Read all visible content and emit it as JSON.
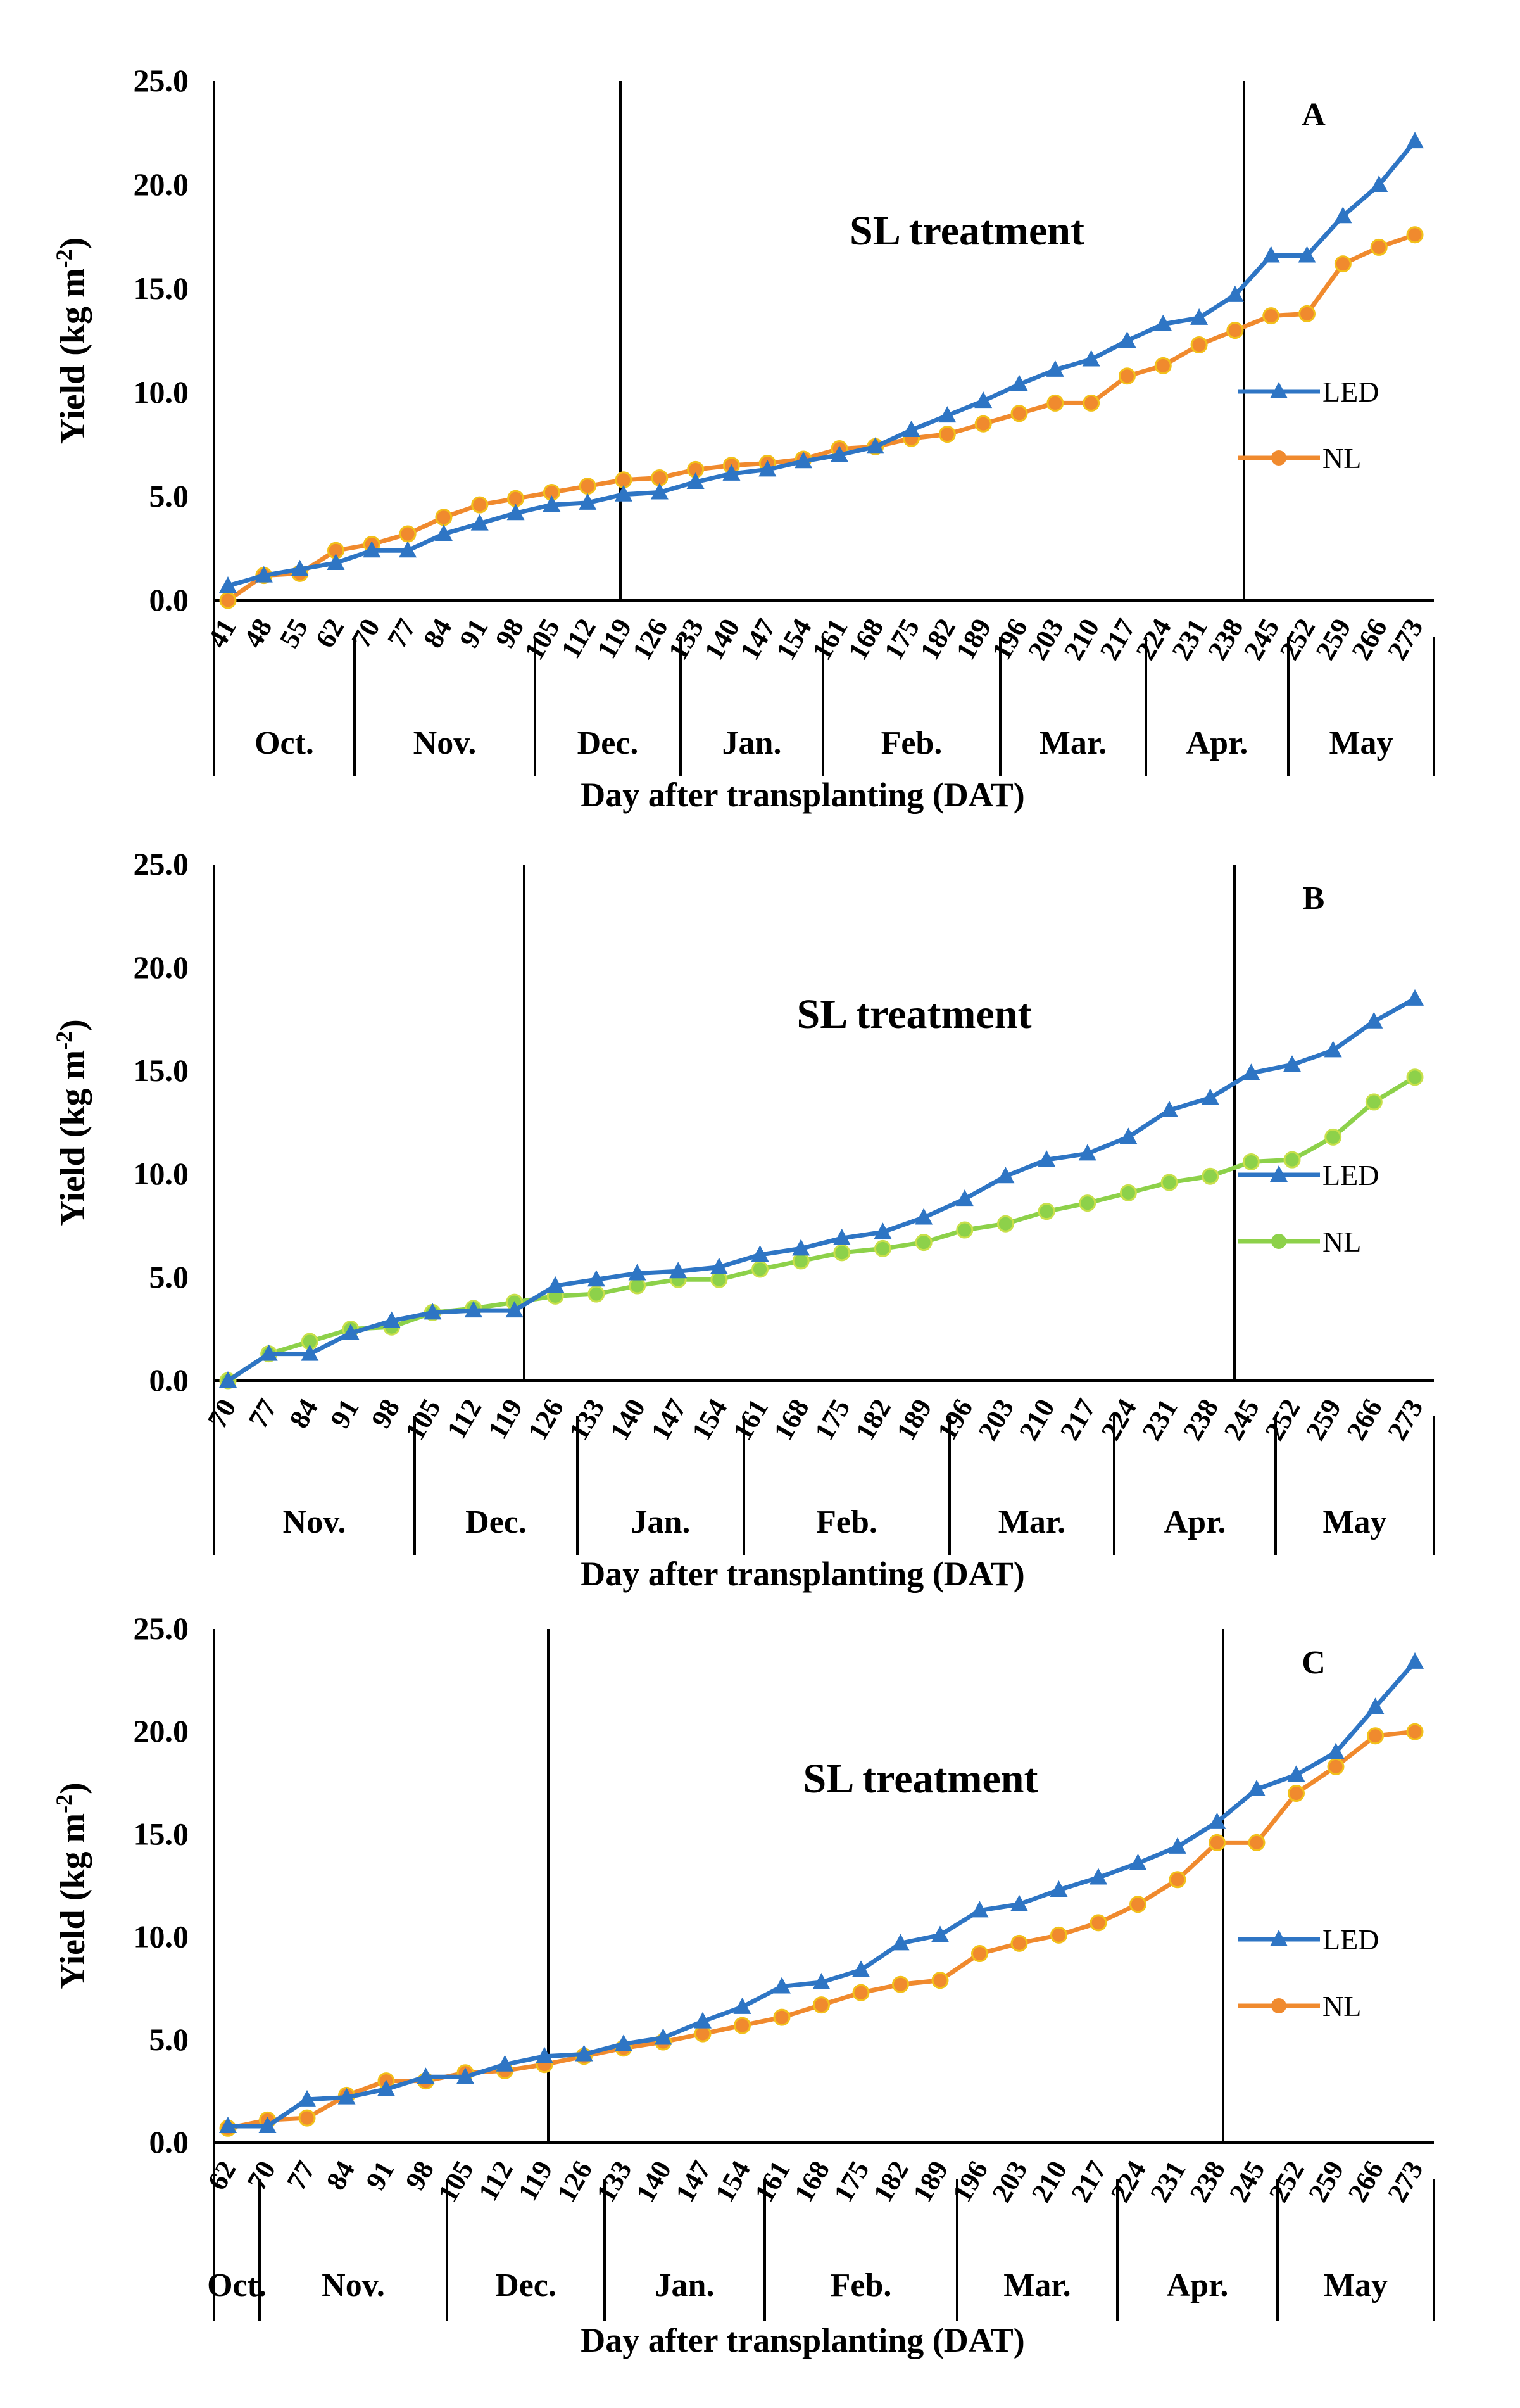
{
  "chart_data": [
    {
      "type": "line",
      "panel_label": "A",
      "title": "SL treatment",
      "xlabel": "Day after transplanting (DAT)",
      "ylabel": "Yield (kg m-2)",
      "ylim": [
        0,
        25
      ],
      "yticks": [
        "0.0",
        "5.0",
        "10.0",
        "15.0",
        "20.0",
        "25.0"
      ],
      "categories": [
        "41",
        "48",
        "55",
        "62",
        "70",
        "77",
        "84",
        "91",
        "98",
        "105",
        "112",
        "119",
        "126",
        "133",
        "140",
        "147",
        "154",
        "161",
        "168",
        "175",
        "182",
        "189",
        "196",
        "203",
        "210",
        "217",
        "224",
        "231",
        "238",
        "245",
        "252",
        "259",
        "266",
        "273"
      ],
      "months": [
        {
          "label": "Oct.",
          "from": 0,
          "to": 3
        },
        {
          "label": "Nov.",
          "from": 4,
          "to": 8
        },
        {
          "label": "Dec.",
          "from": 9,
          "to": 12
        },
        {
          "label": "Jan.",
          "from": 13,
          "to": 16
        },
        {
          "label": "Feb.",
          "from": 17,
          "to": 21
        },
        {
          "label": "Mar.",
          "from": 22,
          "to": 25
        },
        {
          "label": "Apr.",
          "from": 26,
          "to": 28
        },
        {
          "label": "May",
          "from": 29,
          "to": 33
        }
      ],
      "treatment_start": "119",
      "treatment_end": "238",
      "series": [
        {
          "name": "LED",
          "color": "#2e75c4",
          "marker": "triangle",
          "values": [
            0.7,
            1.2,
            1.5,
            1.8,
            2.4,
            2.4,
            3.2,
            3.7,
            4.2,
            4.6,
            4.7,
            5.1,
            5.2,
            5.7,
            6.1,
            6.3,
            6.7,
            7.0,
            7.4,
            8.2,
            8.9,
            9.6,
            10.4,
            11.1,
            11.6,
            12.5,
            13.3,
            13.6,
            14.7,
            16.6,
            16.6,
            18.5,
            20.0,
            22.1
          ]
        },
        {
          "name": "NL",
          "color": "#f08a2e",
          "marker": "circle",
          "values": [
            0.0,
            1.2,
            1.3,
            2.4,
            2.7,
            3.2,
            4.0,
            4.6,
            4.9,
            5.2,
            5.5,
            5.8,
            5.9,
            6.3,
            6.5,
            6.6,
            6.8,
            7.3,
            7.4,
            7.8,
            8.0,
            8.5,
            9.0,
            9.5,
            9.5,
            10.8,
            11.3,
            12.3,
            13.0,
            13.7,
            13.8,
            16.2,
            17.0,
            17.6
          ]
        }
      ]
    },
    {
      "type": "line",
      "panel_label": "B",
      "title": "SL treatment",
      "xlabel": "Day after transplanting (DAT)",
      "ylabel": "Yield (kg m-2)",
      "ylim": [
        0,
        25
      ],
      "yticks": [
        "0.0",
        "5.0",
        "10.0",
        "15.0",
        "20.0",
        "25.0"
      ],
      "categories": [
        "70",
        "77",
        "84",
        "91",
        "98",
        "105",
        "112",
        "119",
        "126",
        "133",
        "140",
        "147",
        "154",
        "161",
        "168",
        "175",
        "182",
        "189",
        "196",
        "203",
        "210",
        "217",
        "224",
        "231",
        "238",
        "245",
        "252",
        "259",
        "266",
        "273"
      ],
      "months": [
        {
          "label": "Nov.",
          "from": 0,
          "to": 4
        },
        {
          "label": "Dec.",
          "from": 5,
          "to": 8
        },
        {
          "label": "Jan.",
          "from": 9,
          "to": 12
        },
        {
          "label": "Feb.",
          "from": 13,
          "to": 17
        },
        {
          "label": "Mar.",
          "from": 18,
          "to": 21
        },
        {
          "label": "Apr.",
          "from": 22,
          "to": 24
        },
        {
          "label": "May",
          "from": 25,
          "to": 29
        }
      ],
      "treatment_start": "119",
      "treatment_end": "238",
      "series": [
        {
          "name": "LED",
          "color": "#2e75c4",
          "marker": "triangle",
          "values": [
            0.0,
            1.3,
            1.3,
            2.3,
            2.9,
            3.3,
            3.4,
            3.4,
            4.6,
            4.9,
            5.2,
            5.3,
            5.5,
            6.1,
            6.4,
            6.9,
            7.2,
            7.9,
            8.8,
            9.9,
            10.7,
            11.0,
            11.8,
            13.1,
            13.7,
            14.9,
            15.3,
            16.0,
            17.4,
            18.5
          ]
        },
        {
          "name": "NL",
          "color": "#8dd14a",
          "marker": "circle",
          "values": [
            0.0,
            1.3,
            1.9,
            2.5,
            2.6,
            3.3,
            3.5,
            3.8,
            4.1,
            4.2,
            4.6,
            4.9,
            4.9,
            5.4,
            5.8,
            6.2,
            6.4,
            6.7,
            7.3,
            7.6,
            8.2,
            8.6,
            9.1,
            9.6,
            9.9,
            10.6,
            10.7,
            11.8,
            13.5,
            14.7
          ]
        }
      ]
    },
    {
      "type": "line",
      "panel_label": "C",
      "title": "SL treatment",
      "xlabel": "Day after transplanting (DAT)",
      "ylabel": "Yield (kg m-2)",
      "ylim": [
        0,
        25
      ],
      "yticks": [
        "0.0",
        "5.0",
        "10.0",
        "15.0",
        "20.0",
        "25.0"
      ],
      "categories": [
        "62",
        "70",
        "77",
        "84",
        "91",
        "98",
        "105",
        "112",
        "119",
        "126",
        "133",
        "140",
        "147",
        "154",
        "161",
        "168",
        "175",
        "182",
        "189",
        "196",
        "203",
        "210",
        "217",
        "224",
        "231",
        "238",
        "245",
        "252",
        "259",
        "266",
        "273"
      ],
      "months": [
        {
          "label": "Oct.",
          "from": 0,
          "to": 0
        },
        {
          "label": "Nov.",
          "from": 1,
          "to": 5
        },
        {
          "label": "Dec.",
          "from": 6,
          "to": 9
        },
        {
          "label": "Jan.",
          "from": 10,
          "to": 13
        },
        {
          "label": "Feb.",
          "from": 14,
          "to": 18
        },
        {
          "label": "Mar.",
          "from": 19,
          "to": 22
        },
        {
          "label": "Apr.",
          "from": 23,
          "to": 25
        },
        {
          "label": "May",
          "from": 26,
          "to": 30
        }
      ],
      "treatment_start": "119",
      "treatment_end": "238",
      "series": [
        {
          "name": "LED",
          "color": "#2e75c4",
          "marker": "triangle",
          "values": [
            0.8,
            0.8,
            2.1,
            2.2,
            2.6,
            3.2,
            3.2,
            3.8,
            4.2,
            4.3,
            4.8,
            5.1,
            5.9,
            6.6,
            7.6,
            7.8,
            8.4,
            9.7,
            10.1,
            11.3,
            11.6,
            12.3,
            12.9,
            13.6,
            14.4,
            15.6,
            17.2,
            17.9,
            19.0,
            21.2,
            23.4
          ]
        },
        {
          "name": "NL",
          "color": "#f08a2e",
          "marker": "circle",
          "values": [
            0.7,
            1.1,
            1.2,
            2.3,
            3.0,
            3.0,
            3.4,
            3.5,
            3.8,
            4.2,
            4.6,
            4.9,
            5.3,
            5.7,
            6.1,
            6.7,
            7.3,
            7.7,
            7.9,
            9.2,
            9.7,
            10.1,
            10.7,
            11.6,
            12.8,
            14.6,
            14.6,
            17.0,
            18.3,
            19.8,
            20.0
          ]
        }
      ]
    }
  ]
}
